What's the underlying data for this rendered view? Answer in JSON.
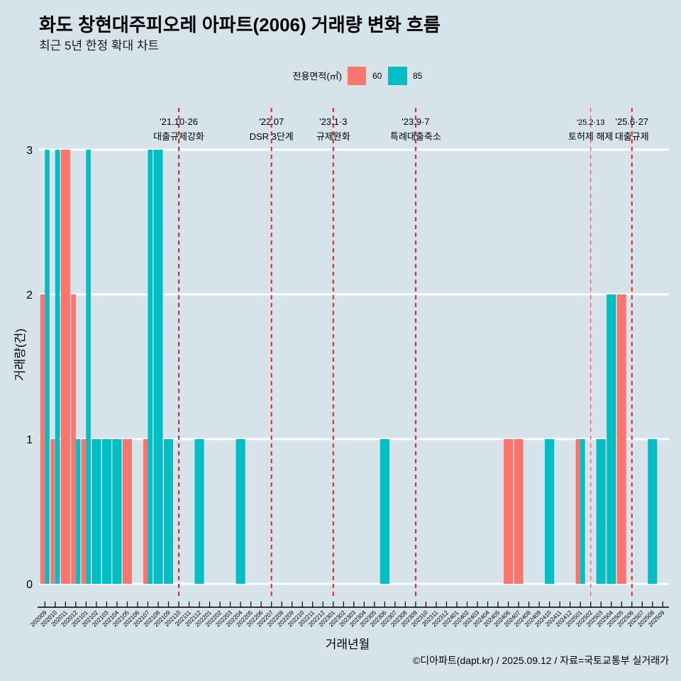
{
  "background_color": "#D6E3EA",
  "caption": "©디아파트(dapt.kr) / 2025.09.12 / 자료=국토교통부 실거래가",
  "chart_data": {
    "type": "bar",
    "title": "화도 창현대주피오레 아파트(2006) 거래량 변화 흐름",
    "subtitle": "최근 5년 한정 확대 차트",
    "xlabel": "거래년월",
    "ylabel": "거래량(건)",
    "ylim": [
      0,
      3
    ],
    "yticks": [
      0,
      1,
      2,
      3
    ],
    "grid": true,
    "legend": {
      "title": "전용면적(㎡)",
      "position": "top"
    },
    "categories": [
      "202009",
      "202010",
      "202011",
      "202012",
      "202101",
      "202102",
      "202103",
      "202104",
      "202105",
      "202106",
      "202107",
      "202108",
      "202109",
      "202110",
      "202111",
      "202112",
      "202201",
      "202202",
      "202203",
      "202204",
      "202205",
      "202206",
      "202207",
      "202208",
      "202209",
      "202210",
      "202211",
      "202212",
      "202301",
      "202302",
      "202303",
      "202304",
      "202305",
      "202306",
      "202307",
      "202308",
      "202309",
      "202310",
      "202311",
      "202312",
      "202401",
      "202402",
      "202403",
      "202404",
      "202405",
      "202406",
      "202407",
      "202408",
      "202409",
      "202410",
      "202411",
      "202412",
      "202501",
      "202502",
      "202503",
      "202504",
      "202505",
      "202506",
      "202507",
      "202508",
      "202509"
    ],
    "series": [
      {
        "name": "60",
        "color": "#F8766D",
        "values": [
          2,
          1,
          3,
          2,
          1,
          0,
          0,
          0,
          1,
          0,
          1,
          0,
          0,
          0,
          0,
          0,
          0,
          0,
          0,
          0,
          0,
          0,
          0,
          0,
          0,
          0,
          0,
          0,
          0,
          0,
          0,
          0,
          0,
          0,
          0,
          0,
          0,
          0,
          0,
          0,
          0,
          0,
          0,
          0,
          0,
          1,
          1,
          0,
          0,
          0,
          0,
          0,
          1,
          0,
          0,
          0,
          2,
          0,
          0,
          0,
          0
        ]
      },
      {
        "name": "85",
        "color": "#00BFC4",
        "values": [
          3,
          3,
          0,
          1,
          3,
          1,
          1,
          1,
          0,
          0,
          3,
          3,
          1,
          0,
          0,
          1,
          0,
          0,
          0,
          1,
          0,
          0,
          0,
          0,
          0,
          0,
          0,
          0,
          0,
          0,
          0,
          0,
          0,
          1,
          0,
          0,
          0,
          0,
          0,
          0,
          0,
          0,
          0,
          0,
          0,
          0,
          0,
          0,
          0,
          1,
          0,
          0,
          1,
          0,
          1,
          2,
          0,
          0,
          0,
          1,
          0
        ]
      }
    ],
    "annotations": [
      {
        "x": "202110",
        "date": "'21.10·26",
        "label": "대출규제강화",
        "color": "#E5242C"
      },
      {
        "x": "202207",
        "date": "'22.07",
        "label": "DSR 3단계",
        "color": "#E5242C"
      },
      {
        "x": "202301",
        "date": "'23.1·3",
        "label": "규제완화",
        "color": "#E5242C"
      },
      {
        "x": "202309",
        "date": "'23.9·7",
        "label": "특례대출축소",
        "color": "#E5242C"
      },
      {
        "x": "202502",
        "date": "'25.2·13",
        "label": "토허제 해제",
        "color": "#EC6B77"
      },
      {
        "x": "202506",
        "date": "'25.6·27",
        "label": "대출규제",
        "color": "#E5242C"
      }
    ]
  }
}
